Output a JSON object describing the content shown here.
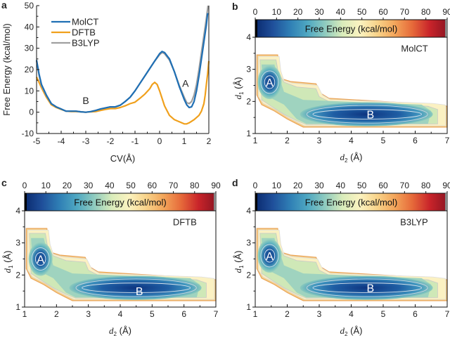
{
  "chart_data": [
    {
      "panel": "a",
      "type": "line",
      "title": "",
      "xlabel": "CV(Å)",
      "ylabel": "Free Energy (kcal/mol)",
      "xlim": [
        -5,
        2
      ],
      "ylim": [
        -10,
        50
      ],
      "xticks": [
        -5,
        -4,
        -3,
        -2,
        -1,
        0,
        1,
        2
      ],
      "yticks": [
        -10,
        0,
        10,
        20,
        30,
        40,
        50
      ],
      "legend_position": "top-left",
      "annotations": [
        {
          "text": "B",
          "x": -3.0,
          "y": 5.5
        },
        {
          "text": "A",
          "x": 1.05,
          "y": 13.5
        }
      ],
      "series": [
        {
          "name": "MolCT",
          "color": "#1f6fb4",
          "x": [
            -5.0,
            -4.9,
            -4.8,
            -4.6,
            -4.4,
            -4.2,
            -4.0,
            -3.8,
            -3.6,
            -3.4,
            -3.2,
            -3.0,
            -2.8,
            -2.6,
            -2.4,
            -2.2,
            -2.0,
            -1.8,
            -1.6,
            -1.4,
            -1.2,
            -1.0,
            -0.8,
            -0.6,
            -0.4,
            -0.2,
            0.0,
            0.1,
            0.2,
            0.4,
            0.6,
            0.8,
            1.0,
            1.1,
            1.2,
            1.3,
            1.4,
            1.5,
            1.6,
            1.7,
            1.8,
            1.9,
            1.95
          ],
          "y": [
            24.5,
            18,
            13,
            8,
            4,
            2.5,
            1.5,
            0.5,
            0.5,
            0.5,
            0.2,
            0,
            0.3,
            0.8,
            1.5,
            2,
            2.5,
            2.5,
            3.3,
            5,
            7,
            10,
            13.5,
            17,
            20.5,
            24,
            27.5,
            28.5,
            28,
            25,
            19,
            12,
            6,
            3.5,
            2.2,
            2.5,
            5,
            10,
            17,
            25,
            33,
            41,
            46.5
          ]
        },
        {
          "name": "DFTB",
          "color": "#f0a01c",
          "x": [
            -5.0,
            -4.9,
            -4.8,
            -4.6,
            -4.4,
            -4.2,
            -4.0,
            -3.8,
            -3.6,
            -3.4,
            -3.2,
            -3.0,
            -2.8,
            -2.6,
            -2.4,
            -2.2,
            -2.0,
            -1.8,
            -1.6,
            -1.4,
            -1.2,
            -1.0,
            -0.8,
            -0.6,
            -0.4,
            -0.3,
            -0.2,
            -0.1,
            0.0,
            0.2,
            0.4,
            0.6,
            0.8,
            1.0,
            1.1,
            1.2,
            1.4,
            1.6,
            1.7,
            1.8,
            1.85,
            1.9,
            1.95,
            2.0
          ],
          "y": [
            16.5,
            14,
            11.5,
            7,
            3.5,
            2.2,
            1.3,
            0.5,
            0.3,
            0.3,
            0.2,
            0,
            0.2,
            0.3,
            0.8,
            1.3,
            1.7,
            1.7,
            2.2,
            3,
            4,
            4.7,
            6.5,
            8.5,
            11,
            13,
            14,
            13,
            10,
            3,
            -1.5,
            -3.5,
            -4.5,
            -5.5,
            -5.5,
            -5,
            -3.5,
            -1.5,
            0.5,
            4,
            8,
            13,
            18,
            24
          ]
        },
        {
          "name": "B3LYP",
          "color": "#a0a0a0",
          "x": [
            -5.0,
            -4.9,
            -4.8,
            -4.6,
            -4.4,
            -4.2,
            -4.0,
            -3.8,
            -3.6,
            -3.4,
            -3.2,
            -3.0,
            -2.8,
            -2.6,
            -2.4,
            -2.2,
            -2.0,
            -1.8,
            -1.6,
            -1.4,
            -1.2,
            -1.0,
            -0.8,
            -0.6,
            -0.4,
            -0.2,
            0.0,
            0.1,
            0.2,
            0.4,
            0.6,
            0.8,
            1.0,
            1.1,
            1.2,
            1.3,
            1.4,
            1.5,
            1.6,
            1.7,
            1.8,
            1.9,
            1.97
          ],
          "y": [
            24,
            17.5,
            12.5,
            7.8,
            4,
            2.5,
            1.5,
            0.5,
            0.5,
            0.5,
            0.2,
            0,
            0.3,
            0.8,
            1.5,
            2,
            2.5,
            2.5,
            3.3,
            5,
            7,
            10,
            13.5,
            17,
            20.5,
            24,
            27,
            28,
            27.5,
            24.5,
            19,
            12.5,
            7,
            4.5,
            4,
            5,
            8,
            13,
            20,
            28,
            36,
            44,
            50
          ]
        }
      ]
    },
    {
      "panel": "b",
      "type": "heatmap",
      "label": "MolCT",
      "xlabel": "d2 (Å)",
      "ylabel": "d1 (Å)",
      "xlim": [
        1,
        7
      ],
      "ylim": [
        1,
        4.5
      ],
      "xticks": [
        1,
        2,
        3,
        4,
        5,
        6,
        7
      ],
      "yticks": [
        1,
        2,
        3,
        4
      ],
      "colorbar": {
        "label": "Free Energy (kcal/mol)",
        "range": [
          0,
          90
        ],
        "ticks": [
          0,
          10,
          20,
          30,
          40,
          50,
          60,
          70,
          80,
          90
        ],
        "placement": "top"
      },
      "minima": [
        {
          "text": "A",
          "d2": 1.45,
          "d1": 2.6
        },
        {
          "text": "B",
          "d2": 4.6,
          "d1": 1.6
        }
      ]
    },
    {
      "panel": "c",
      "type": "heatmap",
      "label": "DFTB",
      "xlabel": "d2 (Å)",
      "ylabel": "d1 (Å)",
      "xlim": [
        1,
        7
      ],
      "ylim": [
        1,
        4.5
      ],
      "xticks": [
        1,
        2,
        3,
        4,
        5,
        6,
        7
      ],
      "yticks": [
        1,
        2,
        3,
        4
      ],
      "colorbar": {
        "label": "Free Energy (kcal/mol)",
        "range": [
          0,
          90
        ],
        "ticks": [
          0,
          10,
          20,
          30,
          40,
          50,
          60,
          70,
          80,
          90
        ],
        "placement": "top"
      },
      "minima": [
        {
          "text": "A",
          "d2": 1.5,
          "d1": 2.5
        },
        {
          "text": "B",
          "d2": 4.6,
          "d1": 1.5
        }
      ]
    },
    {
      "panel": "d",
      "type": "heatmap",
      "label": "B3LYP",
      "xlabel": "d2 (Å)",
      "ylabel": "d1 (Å)",
      "xlim": [
        1,
        7
      ],
      "ylim": [
        1,
        4.5
      ],
      "xticks": [
        1,
        2,
        3,
        4,
        5,
        6,
        7
      ],
      "yticks": [
        1,
        2,
        3,
        4
      ],
      "colorbar": {
        "label": "Free Energy (kcal/mol)",
        "range": [
          0,
          90
        ],
        "ticks": [
          0,
          10,
          20,
          30,
          40,
          50,
          60,
          70,
          80,
          90
        ],
        "placement": "top"
      },
      "minima": [
        {
          "text": "A",
          "d2": 1.45,
          "d1": 2.6
        },
        {
          "text": "B",
          "d2": 4.6,
          "d1": 1.6
        }
      ]
    }
  ],
  "panel_letters": [
    "a",
    "b",
    "c",
    "d"
  ],
  "colormap": [
    "#0a2a6e",
    "#1f4f9a",
    "#2f7fb5",
    "#4fa8c2",
    "#8fcbbf",
    "#d9ecbb",
    "#fbf3c0",
    "#f8d38a",
    "#f3a55a",
    "#e66a3a",
    "#c9242a",
    "#8e1522"
  ]
}
